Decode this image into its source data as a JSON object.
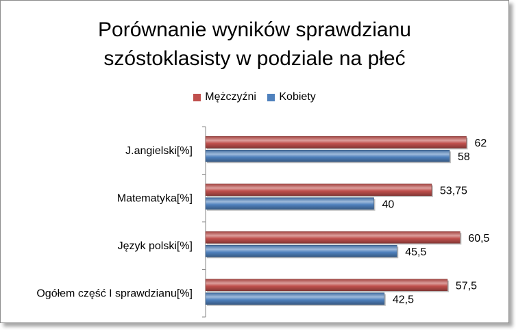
{
  "chart_data": {
    "type": "bar",
    "orientation": "horizontal",
    "title_lines": [
      "Porównanie wyników sprawdzianu",
      "szóstoklasisty w podziale na płeć"
    ],
    "categories": [
      "J.angielski[%]",
      "Matematyka[%]",
      "Język polski[%]",
      "Ogółem część I sprawdzianu[%]"
    ],
    "series": [
      {
        "name": "Mężczyźni",
        "color": "#c0504d",
        "values": [
          62,
          53.75,
          60.5,
          57.5
        ],
        "labels": [
          "62",
          "53,75",
          "60,5",
          "57,5"
        ]
      },
      {
        "name": "Kobiety",
        "color": "#4f81bd",
        "values": [
          58,
          40,
          45.5,
          42.5
        ],
        "labels": [
          "58",
          "40",
          "45,5",
          "42,5"
        ]
      }
    ],
    "xlim": [
      0,
      80
    ],
    "grid": false,
    "legend_position": "top"
  }
}
